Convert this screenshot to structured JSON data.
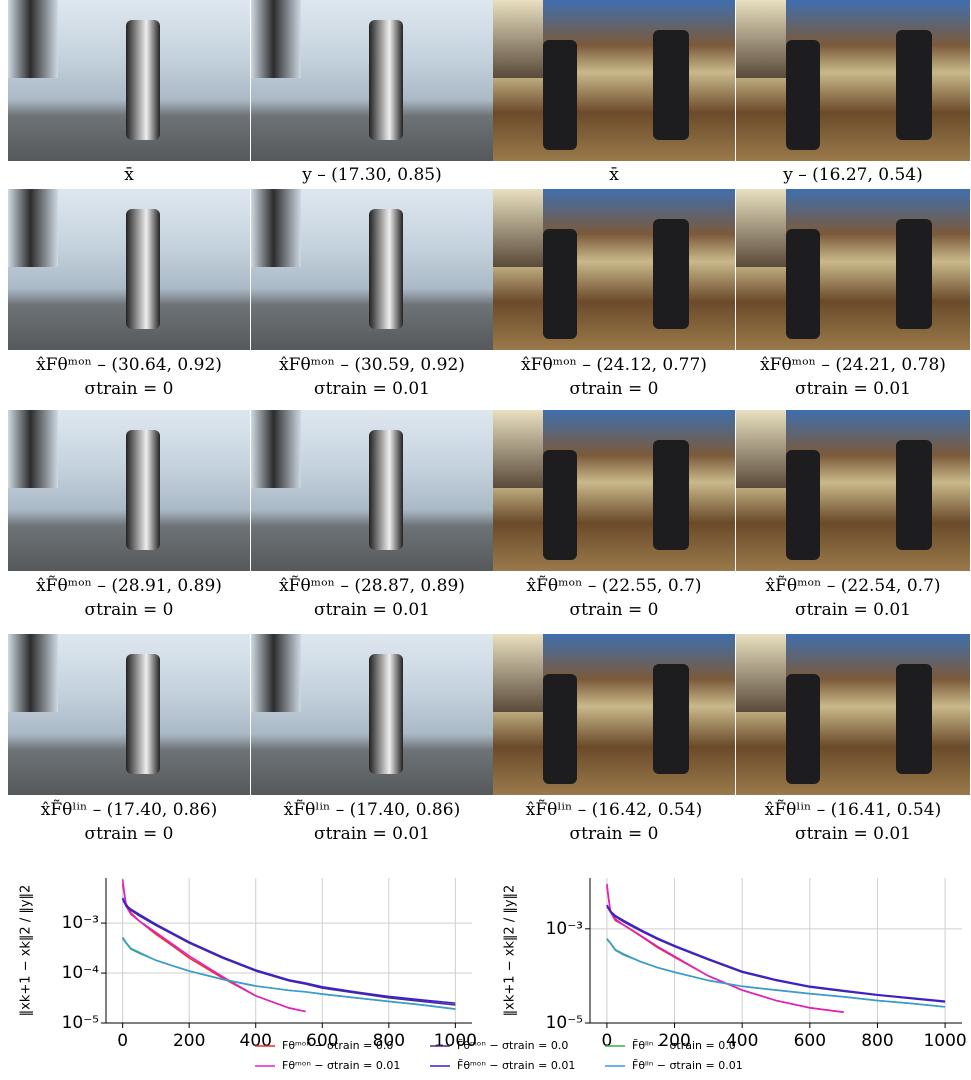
{
  "figure": {
    "rows": [
      [
        {
          "caption": "x̄"
        },
        {
          "caption": "y – (17.30, 0.85)"
        },
        {
          "caption": "x̄"
        },
        {
          "caption": "y – (16.27, 0.54)"
        }
      ],
      [
        {
          "caption": "x̂Fθᵐᵒⁿ – (30.64, 0.92)",
          "sigma": "σtrain = 0"
        },
        {
          "caption": "x̂Fθᵐᵒⁿ – (30.59, 0.92)",
          "sigma": "σtrain = 0.01"
        },
        {
          "caption": "x̂Fθᵐᵒⁿ – (24.12, 0.77)",
          "sigma": "σtrain = 0"
        },
        {
          "caption": "x̂Fθᵐᵒⁿ – (24.21, 0.78)",
          "sigma": "σtrain = 0.01"
        }
      ],
      [
        {
          "caption": "x̂F̃θᵐᵒⁿ – (28.91, 0.89)",
          "sigma": "σtrain = 0"
        },
        {
          "caption": "x̂F̃θᵐᵒⁿ – (28.87, 0.89)",
          "sigma": "σtrain = 0.01"
        },
        {
          "caption": "x̂F̃θᵐᵒⁿ – (22.55, 0.7)",
          "sigma": "σtrain = 0"
        },
        {
          "caption": "x̂F̃θᵐᵒⁿ – (22.54, 0.7)",
          "sigma": "σtrain = 0.01"
        }
      ],
      [
        {
          "caption": "x̂F̃θˡⁱⁿ – (17.40, 0.86)",
          "sigma": "σtrain = 0"
        },
        {
          "caption": "x̂F̃θˡⁱⁿ – (17.40, 0.86)",
          "sigma": "σtrain = 0.01"
        },
        {
          "caption": "x̂F̃θˡⁱⁿ – (16.42, 0.54)",
          "sigma": "σtrain = 0"
        },
        {
          "caption": "x̂F̃θˡⁱⁿ – (16.41, 0.54)",
          "sigma": "σtrain = 0.01"
        }
      ]
    ]
  },
  "chart_data": [
    {
      "type": "line",
      "ylabel": "‖xk+1 − xk‖2 / ‖y‖2",
      "yscale": "log",
      "grid": true,
      "x": [
        0,
        10,
        25,
        50,
        100,
        150,
        200,
        300,
        400,
        500,
        550,
        600,
        700,
        800,
        900,
        1000
      ],
      "xlim": [
        -50,
        1050
      ],
      "xticks": [
        0,
        200,
        400,
        600,
        800,
        1000
      ],
      "ylim": [
        1e-05,
        0.008
      ],
      "yticks": [
        {
          "value": 1e-05,
          "label": "10⁻⁵"
        },
        {
          "value": 0.0001,
          "label": "10⁻⁴"
        },
        {
          "value": 0.001,
          "label": "10⁻³"
        }
      ],
      "series": [
        {
          "name": "Fθᵐᵒⁿ − σtrain = 0.0",
          "color": "#e8322a",
          "values": [
            0.006,
            0.0025,
            0.0016,
            0.0011,
            0.0006,
            0.00035,
            0.0002,
            8e-05,
            3.5e-05,
            2e-05,
            1.7e-05,
            null,
            null,
            null,
            null,
            null
          ]
        },
        {
          "name": "Fθᵐᵒⁿ − σtrain = 0.01",
          "color": "#e020c0",
          "values": [
            0.0075,
            0.0022,
            0.0015,
            0.0011,
            0.00065,
            0.00038,
            0.00022,
            8.5e-05,
            3.5e-05,
            2e-05,
            1.7e-05,
            null,
            null,
            null,
            null,
            null
          ]
        },
        {
          "name": "F̃θᵐᵒⁿ − σtrain = 0.0",
          "color": "#4b2a8c",
          "values": [
            0.003,
            0.0022,
            0.0018,
            0.0014,
            0.0009,
            0.0006,
            0.0004,
            0.0002,
            0.00011,
            7e-05,
            6e-05,
            5e-05,
            4e-05,
            3.2e-05,
            2.7e-05,
            2.3e-05
          ]
        },
        {
          "name": "F̃θᵐᵒⁿ − σtrain = 0.01",
          "color": "#3a1fd6",
          "values": [
            0.0032,
            0.0023,
            0.0019,
            0.0015,
            0.00095,
            0.00063,
            0.00042,
            0.00021,
            0.000115,
            7.3e-05,
            6.3e-05,
            5.3e-05,
            4.2e-05,
            3.4e-05,
            2.9e-05,
            2.5e-05
          ]
        },
        {
          "name": "F̃θˡⁱⁿ − σtrain = 0.0",
          "color": "#3cb043",
          "values": [
            0.0005,
            0.0004,
            0.0003,
            0.00025,
            0.00018,
            0.00014,
            0.00011,
            7.5e-05,
            5.5e-05,
            4.5e-05,
            4.2e-05,
            3.8e-05,
            3.2e-05,
            2.7e-05,
            2.3e-05,
            1.9e-05
          ]
        },
        {
          "name": "F̃θˡⁱⁿ − σtrain = 0.01",
          "color": "#3a9ad9",
          "values": [
            0.00052,
            0.00041,
            0.00031,
            0.00026,
            0.00018,
            0.00014,
            0.00011,
            7.5e-05,
            5.5e-05,
            4.5e-05,
            4.2e-05,
            3.8e-05,
            3.2e-05,
            2.7e-05,
            2.3e-05,
            1.9e-05
          ]
        }
      ]
    },
    {
      "type": "line",
      "ylabel": "‖xk+1 − xk‖2 / ‖y‖2",
      "yscale": "log",
      "grid": true,
      "x": [
        0,
        10,
        25,
        50,
        100,
        150,
        200,
        300,
        400,
        500,
        600,
        700,
        800,
        900,
        1000
      ],
      "xlim": [
        -50,
        1050
      ],
      "xticks": [
        0,
        200,
        400,
        600,
        800,
        1000
      ],
      "ylim": [
        1e-05,
        0.012
      ],
      "yticks": [
        {
          "value": 1e-05,
          "label": "10⁻⁵"
        },
        {
          "value": 0.001,
          "label": "10⁻³"
        }
      ],
      "series": [
        {
          "color": "#e8322a",
          "values": [
            0.008,
            0.0025,
            0.0016,
            0.0012,
            0.0007,
            0.0004,
            0.00025,
            0.0001,
            5e-05,
            3e-05,
            2.1e-05,
            1.7e-05,
            null,
            null,
            null
          ]
        },
        {
          "color": "#e020c0",
          "values": [
            0.009,
            0.0023,
            0.0015,
            0.0012,
            0.00072,
            0.00042,
            0.00026,
            0.0001,
            5e-05,
            3e-05,
            2.1e-05,
            1.7e-05,
            null,
            null,
            null
          ]
        },
        {
          "color": "#4b2a8c",
          "values": [
            0.003,
            0.0023,
            0.0018,
            0.0014,
            0.0009,
            0.0006,
            0.00042,
            0.00022,
            0.00012,
            8e-05,
            5.8e-05,
            4.7e-05,
            3.9e-05,
            3.3e-05,
            2.8e-05
          ]
        },
        {
          "color": "#3a1fd6",
          "values": [
            0.0032,
            0.0024,
            0.0019,
            0.0015,
            0.00095,
            0.00063,
            0.00044,
            0.00023,
            0.000125,
            8.3e-05,
            6e-05,
            4.9e-05,
            4e-05,
            3.4e-05,
            2.9e-05
          ]
        },
        {
          "color": "#3cb043",
          "values": [
            0.0006,
            0.0005,
            0.00035,
            0.00028,
            0.0002,
            0.00015,
            0.00012,
            8e-05,
            6e-05,
            5e-05,
            4.2e-05,
            3.6e-05,
            3e-05,
            2.6e-05,
            2.2e-05
          ]
        },
        {
          "color": "#3a9ad9",
          "values": [
            0.00062,
            0.00051,
            0.00036,
            0.00029,
            0.0002,
            0.00015,
            0.00012,
            8e-05,
            6e-05,
            5e-05,
            4.2e-05,
            3.6e-05,
            3e-05,
            2.6e-05,
            2.2e-05
          ]
        }
      ]
    }
  ]
}
